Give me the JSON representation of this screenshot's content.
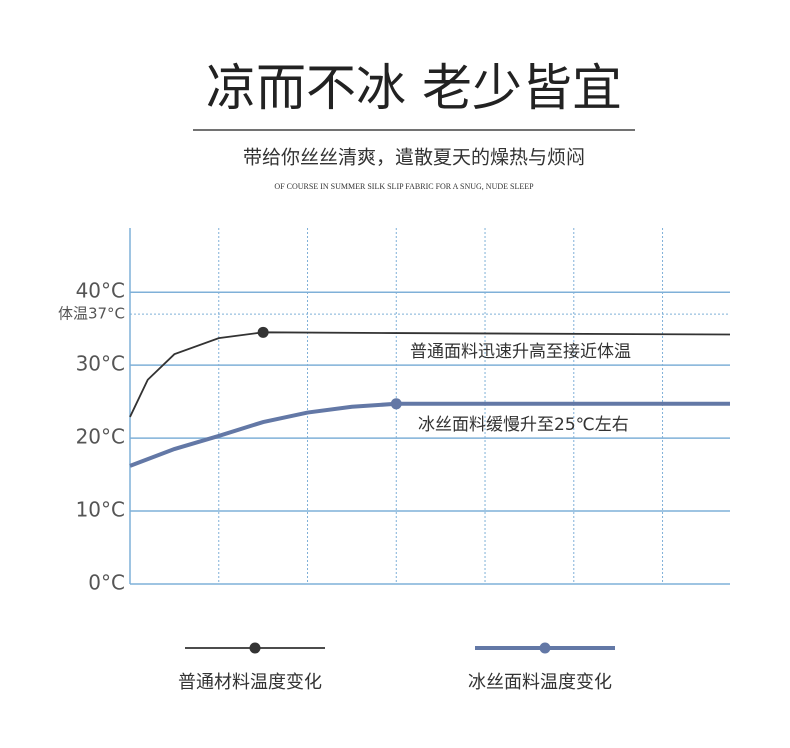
{
  "chart_data": {
    "type": "line",
    "title": "凉而不冰 老少皆宜",
    "subtitle": "带给你丝丝清爽，遣散夏天的燥热与烦闷",
    "caption": "OF COURSE IN SUMMER SILK SLIP FABRIC FOR A SNUG, NUDE SLEEP",
    "xlim": [
      0,
      6.76
    ],
    "xticks": [
      1,
      2,
      3,
      4,
      5,
      6
    ],
    "ylim": [
      0,
      48.8
    ],
    "yticks": [
      {
        "value": 0,
        "label": "0°C"
      },
      {
        "value": 10,
        "label": "10°C"
      },
      {
        "value": 20,
        "label": "20°C"
      },
      {
        "value": 30,
        "label": "30°C"
      },
      {
        "value": 37,
        "label": "体温37°C"
      },
      {
        "value": 40,
        "label": "40°C"
      }
    ],
    "grid": true,
    "series": [
      {
        "name": "普通材料温度变化",
        "color": "#333333",
        "annotation": "普通面料迅速升高至接近体温",
        "marker_index": 4,
        "x": [
          0,
          0.2,
          0.5,
          1,
          1.5,
          3,
          6.76
        ],
        "values": [
          22.9,
          28,
          31.5,
          33.7,
          34.5,
          34.4,
          34.2
        ]
      },
      {
        "name": "冰丝面料温度变化",
        "color": "#6378a6",
        "annotation": "冰丝面料缓慢升至25℃左右",
        "marker_index": 6,
        "x": [
          0,
          0.5,
          1,
          1.5,
          2,
          2.5,
          3,
          6.76
        ],
        "values": [
          16.2,
          18.5,
          20.3,
          22.2,
          23.5,
          24.3,
          24.7,
          24.7
        ]
      }
    ]
  }
}
